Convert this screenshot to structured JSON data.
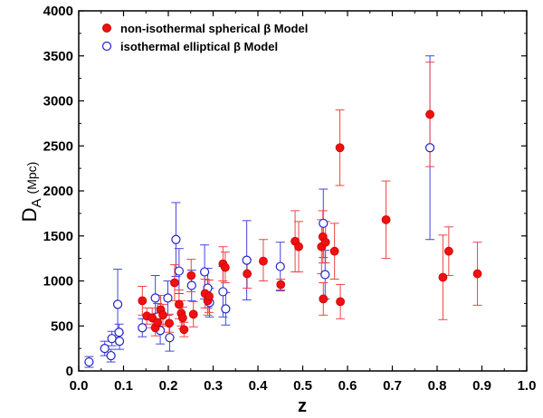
{
  "chart_data": {
    "type": "scatter",
    "title": "",
    "xlabel": "z",
    "ylabel_main": "D",
    "ylabel_sub": "A",
    "ylabel_unit": "(Mpc)",
    "xlim": [
      0.0,
      1.0
    ],
    "ylim": [
      0,
      4000
    ],
    "xticks": [
      "0.0",
      "0.1",
      "0.2",
      "0.3",
      "0.4",
      "0.5",
      "0.6",
      "0.7",
      "0.8",
      "0.9",
      "1.0"
    ],
    "yticks": [
      "0",
      "500",
      "1000",
      "1500",
      "2000",
      "2500",
      "3000",
      "3500",
      "4000"
    ],
    "legend_position": "top-left",
    "series": [
      {
        "name": "non-isothermal spherical β Model",
        "marker": "filled-circle",
        "color": "#ee1111",
        "points": [
          {
            "z": 0.142,
            "d": 780,
            "lo": 620,
            "hi": 940
          },
          {
            "z": 0.152,
            "d": 610,
            "lo": 520,
            "hi": 700
          },
          {
            "z": 0.164,
            "d": 590,
            "lo": 480,
            "hi": 700
          },
          {
            "z": 0.171,
            "d": 480,
            "lo": 390,
            "hi": 570
          },
          {
            "z": 0.176,
            "d": 540,
            "lo": 440,
            "hi": 640
          },
          {
            "z": 0.183,
            "d": 680,
            "lo": 520,
            "hi": 840
          },
          {
            "z": 0.188,
            "d": 620,
            "lo": 500,
            "hi": 740
          },
          {
            "z": 0.202,
            "d": 530,
            "lo": 430,
            "hi": 630
          },
          {
            "z": 0.214,
            "d": 980,
            "lo": 780,
            "hi": 1180
          },
          {
            "z": 0.224,
            "d": 740,
            "lo": 580,
            "hi": 900
          },
          {
            "z": 0.229,
            "d": 640,
            "lo": 500,
            "hi": 780
          },
          {
            "z": 0.232,
            "d": 590,
            "lo": 470,
            "hi": 710
          },
          {
            "z": 0.235,
            "d": 460,
            "lo": 380,
            "hi": 540
          },
          {
            "z": 0.251,
            "d": 1060,
            "lo": 880,
            "hi": 1240
          },
          {
            "z": 0.256,
            "d": 630,
            "lo": 490,
            "hi": 770
          },
          {
            "z": 0.282,
            "d": 860,
            "lo": 700,
            "hi": 1020
          },
          {
            "z": 0.288,
            "d": 780,
            "lo": 620,
            "hi": 940
          },
          {
            "z": 0.291,
            "d": 830,
            "lo": 650,
            "hi": 1010
          },
          {
            "z": 0.322,
            "d": 1190,
            "lo": 1000,
            "hi": 1380
          },
          {
            "z": 0.327,
            "d": 1150,
            "lo": 980,
            "hi": 1320
          },
          {
            "z": 0.376,
            "d": 1080,
            "lo": 920,
            "hi": 1240
          },
          {
            "z": 0.412,
            "d": 1220,
            "lo": 1000,
            "hi": 1460
          },
          {
            "z": 0.451,
            "d": 960,
            "lo": 900,
            "hi": 1020
          },
          {
            "z": 0.483,
            "d": 1440,
            "lo": 1100,
            "hi": 1780
          },
          {
            "z": 0.491,
            "d": 1380,
            "lo": 1100,
            "hi": 1660
          },
          {
            "z": 0.542,
            "d": 1380,
            "lo": 1080,
            "hi": 1680
          },
          {
            "z": 0.545,
            "d": 1490,
            "lo": 1200,
            "hi": 1780
          },
          {
            "z": 0.546,
            "d": 800,
            "lo": 620,
            "hi": 980
          },
          {
            "z": 0.551,
            "d": 1430,
            "lo": 1200,
            "hi": 1660
          },
          {
            "z": 0.571,
            "d": 1330,
            "lo": 1020,
            "hi": 1640
          },
          {
            "z": 0.583,
            "d": 2480,
            "lo": 2060,
            "hi": 2900
          },
          {
            "z": 0.584,
            "d": 770,
            "lo": 580,
            "hi": 960
          },
          {
            "z": 0.686,
            "d": 1680,
            "lo": 1250,
            "hi": 2110
          },
          {
            "z": 0.784,
            "d": 2850,
            "lo": 2270,
            "hi": 3430
          },
          {
            "z": 0.813,
            "d": 1040,
            "lo": 570,
            "hi": 1510
          },
          {
            "z": 0.826,
            "d": 1330,
            "lo": 1060,
            "hi": 1600
          },
          {
            "z": 0.89,
            "d": 1080,
            "lo": 730,
            "hi": 1430
          }
        ]
      },
      {
        "name": "isothermal elliptical β Model",
        "marker": "open-circle",
        "color": "#2222cc",
        "points": [
          {
            "z": 0.023,
            "d": 100,
            "lo": 40,
            "hi": 160
          },
          {
            "z": 0.058,
            "d": 250,
            "lo": 170,
            "hi": 330
          },
          {
            "z": 0.072,
            "d": 170,
            "lo": 100,
            "hi": 240
          },
          {
            "z": 0.074,
            "d": 360,
            "lo": 280,
            "hi": 440
          },
          {
            "z": 0.087,
            "d": 740,
            "lo": 350,
            "hi": 1130
          },
          {
            "z": 0.09,
            "d": 430,
            "lo": 340,
            "hi": 520
          },
          {
            "z": 0.091,
            "d": 330,
            "lo": 240,
            "hi": 420
          },
          {
            "z": 0.142,
            "d": 480,
            "lo": 380,
            "hi": 580
          },
          {
            "z": 0.171,
            "d": 810,
            "lo": 560,
            "hi": 1060
          },
          {
            "z": 0.176,
            "d": 600,
            "lo": 450,
            "hi": 750
          },
          {
            "z": 0.182,
            "d": 450,
            "lo": 300,
            "hi": 600
          },
          {
            "z": 0.199,
            "d": 810,
            "lo": 620,
            "hi": 1000
          },
          {
            "z": 0.203,
            "d": 370,
            "lo": 220,
            "hi": 520
          },
          {
            "z": 0.217,
            "d": 1460,
            "lo": 1050,
            "hi": 1870
          },
          {
            "z": 0.224,
            "d": 1110,
            "lo": 860,
            "hi": 1360
          },
          {
            "z": 0.252,
            "d": 950,
            "lo": 780,
            "hi": 1120
          },
          {
            "z": 0.281,
            "d": 1100,
            "lo": 800,
            "hi": 1400
          },
          {
            "z": 0.288,
            "d": 920,
            "lo": 700,
            "hi": 1140
          },
          {
            "z": 0.292,
            "d": 760,
            "lo": 600,
            "hi": 920
          },
          {
            "z": 0.322,
            "d": 880,
            "lo": 600,
            "hi": 1160
          },
          {
            "z": 0.328,
            "d": 690,
            "lo": 510,
            "hi": 870
          },
          {
            "z": 0.375,
            "d": 1230,
            "lo": 790,
            "hi": 1670
          },
          {
            "z": 0.45,
            "d": 1160,
            "lo": 890,
            "hi": 1430
          },
          {
            "z": 0.546,
            "d": 1640,
            "lo": 1260,
            "hi": 2020
          },
          {
            "z": 0.55,
            "d": 1070,
            "lo": 800,
            "hi": 1340
          },
          {
            "z": 0.784,
            "d": 2480,
            "lo": 1460,
            "hi": 3500
          }
        ]
      }
    ]
  }
}
